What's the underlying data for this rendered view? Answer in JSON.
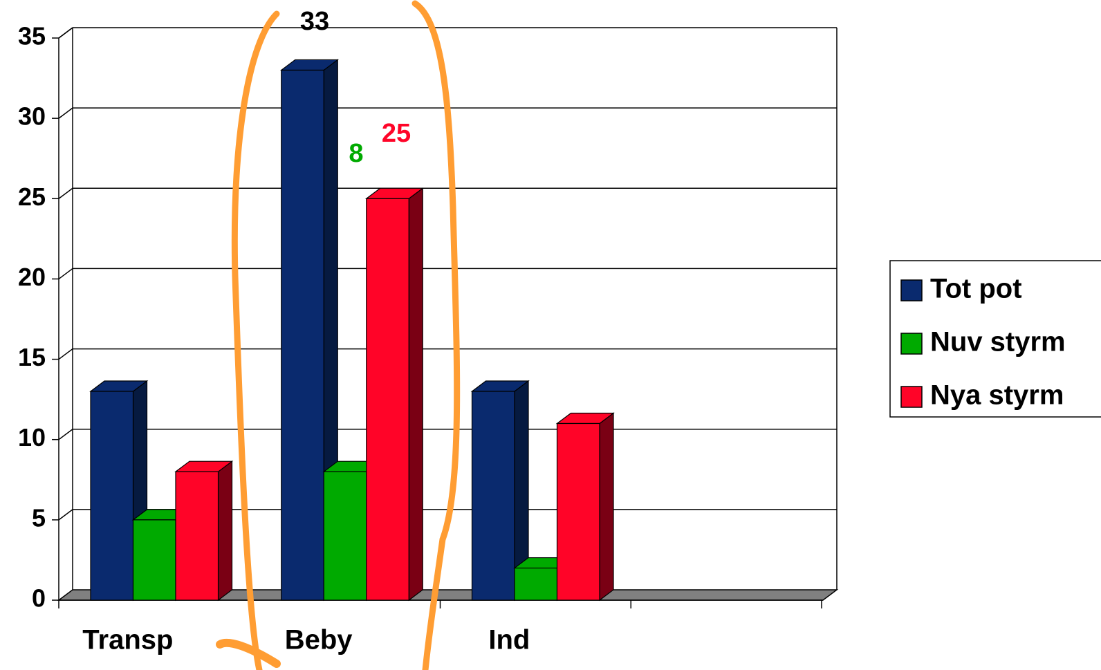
{
  "chart_data": {
    "type": "bar3d",
    "categories": [
      "Transp",
      "Beby",
      "Ind",
      null
    ],
    "series": [
      {
        "name": "Tot pot",
        "color": "#0a2a6e",
        "side": "#061a40",
        "values": [
          13,
          33,
          13,
          null
        ],
        "label_color": "#000000"
      },
      {
        "name": "Nuv styrm",
        "color": "#00aa00",
        "side": "#006a00",
        "values": [
          5,
          8,
          2,
          null
        ],
        "label_color": "#00aa00"
      },
      {
        "name": "Nya styrm",
        "color": "#ff0428",
        "side": "#7a0014",
        "values": [
          8,
          25,
          11,
          null
        ],
        "label_color": "#ff0428"
      }
    ],
    "ylim": [
      0,
      35
    ],
    "yticks": [
      0,
      5,
      10,
      15,
      20,
      25,
      30,
      35
    ],
    "grid": true,
    "legend": "right"
  }
}
